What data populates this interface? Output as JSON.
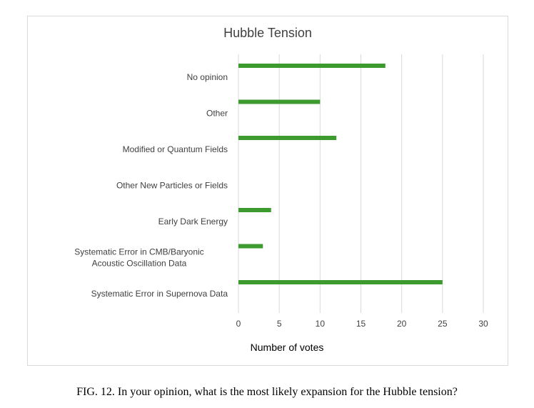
{
  "chart_data": {
    "type": "bar",
    "orientation": "horizontal",
    "title": "Hubble Tension",
    "xlabel": "Number of votes",
    "ylabel": "",
    "categories": [
      "No opinion",
      "Other",
      "Modified or Quantum Fields",
      "Other New Particles or Fields",
      "Early Dark Energy",
      "Systematic Error in CMB/Baryonic Acoustic Oscillation Data",
      "Systematic Error in Supernova Data"
    ],
    "values": [
      18,
      10,
      12,
      0,
      4,
      3,
      25
    ],
    "xlim": [
      0,
      30
    ],
    "xticks": [
      "0",
      "5",
      "10",
      "15",
      "20",
      "25",
      "30"
    ],
    "grid": "vertical",
    "legend": "none",
    "bar_color": "#3c9a2e",
    "grid_color": "#d9d9d9"
  },
  "caption": "FIG. 12. In your opinion, what is the most likely expansion for the Hubble tension?"
}
